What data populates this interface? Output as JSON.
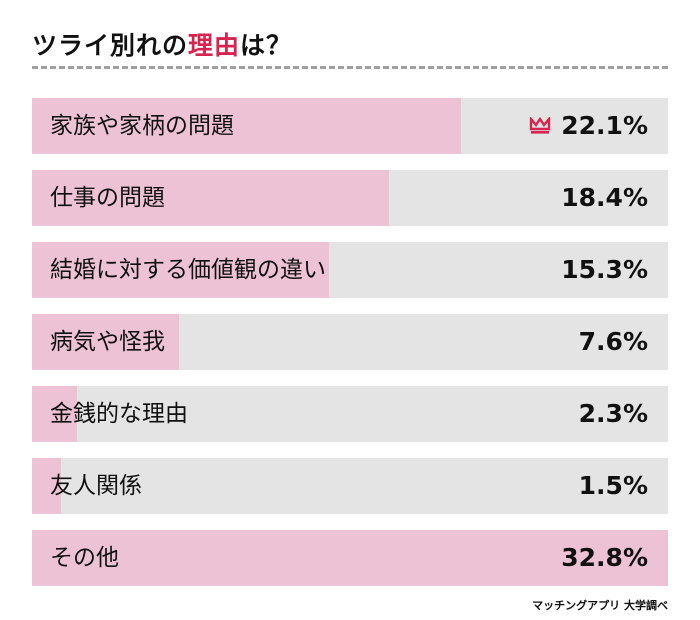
{
  "title": {
    "prefix": "ツライ別れの",
    "highlight": "理由",
    "suffix": "は？"
  },
  "colors": {
    "accent": "#d6244f",
    "bar_fill": "#edc2d5",
    "bar_track": "#e4e4e4"
  },
  "chart_data": {
    "type": "bar",
    "orientation": "horizontal",
    "categories": [
      "家族や家柄の問題",
      "仕事の問題",
      "結婚に対する価値観の違い",
      "病気や怪我",
      "金銭的な理由",
      "友人関係",
      "その他"
    ],
    "values": [
      22.1,
      18.4,
      15.3,
      7.6,
      2.3,
      1.5,
      32.8
    ],
    "value_labels": [
      "22.1%",
      "18.4%",
      "15.3%",
      "7.6%",
      "2.3%",
      "1.5%",
      "32.8%"
    ],
    "unit": "%",
    "highlighted_index": 0,
    "highlight_icon": "crown-icon",
    "xlim": [
      0,
      32.8
    ],
    "grid": false
  },
  "source": "マッチングアプリ 大学調べ"
}
